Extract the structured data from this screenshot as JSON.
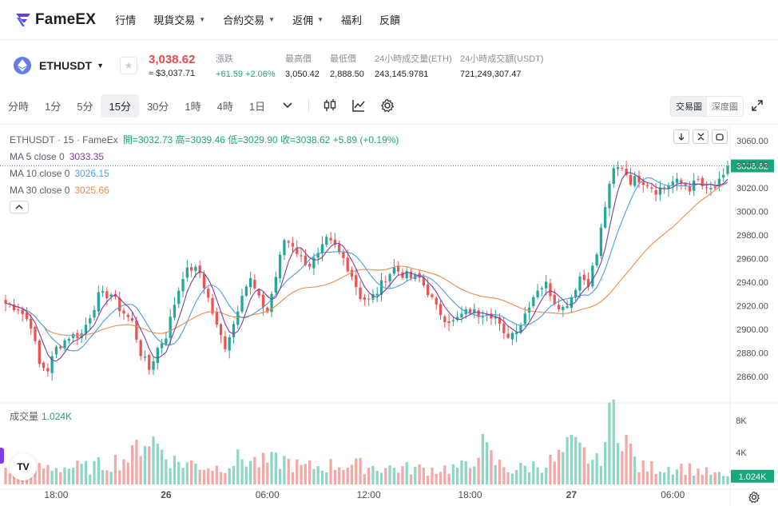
{
  "brand": {
    "name": "FameEX"
  },
  "nav": {
    "items": [
      {
        "label": "行情",
        "dropdown": false
      },
      {
        "label": "現貨交易",
        "dropdown": true
      },
      {
        "label": "合約交易",
        "dropdown": true
      },
      {
        "label": "返佣",
        "dropdown": true
      },
      {
        "label": "福利",
        "dropdown": false
      },
      {
        "label": "反饋",
        "dropdown": false
      }
    ]
  },
  "ticker": {
    "symbol": "ETHUSDT",
    "icon": "ethereum-icon",
    "price": "3,038.62",
    "price_usd": "≈ $3,037.71",
    "stats": [
      {
        "key": "漲跌",
        "value": "+61.59 +2.06%",
        "positive": true
      },
      {
        "key": "最高價",
        "value": "3,050.42",
        "positive": false
      },
      {
        "key": "最低價",
        "value": "2,888.50",
        "positive": false
      },
      {
        "key": "24小時成交量(ETH)",
        "value": "243,145.9781",
        "positive": false
      },
      {
        "key": "24小時成交額(USDT)",
        "value": "721,249,307.47",
        "positive": false
      }
    ]
  },
  "toolbar": {
    "timeframes": [
      "分時",
      "1分",
      "5分",
      "15分",
      "30分",
      "1時",
      "4時",
      "1日"
    ],
    "active_timeframe": "15分",
    "view_toggle": [
      "交易圖",
      "深度圖"
    ],
    "active_view": "交易圖"
  },
  "legend": {
    "title": "ETHUSDT · 15 · FameEx",
    "ohlc": "開=3032.73 高=3039.46 低=3029.90 收=3038.62 +5.89 (+0.19%)",
    "ma": [
      {
        "label": "MA 5 close 0",
        "value": "3033.35",
        "color": "#7b3fa1"
      },
      {
        "label": "MA 10 close 0",
        "value": "3026.15",
        "color": "#4a9fe0"
      },
      {
        "label": "MA 30 close 0",
        "value": "3025.66",
        "color": "#f08a4b"
      }
    ],
    "volume_label": "成交量",
    "volume_value": "1.024K"
  },
  "colors": {
    "up": "#26a69a",
    "down": "#ef5350",
    "ma5": "#7b3fa1",
    "ma10": "#4a9fe0",
    "ma30": "#f08a4b",
    "price_label": "#19a67c"
  },
  "chart_data": {
    "type": "candlestick",
    "price_axis": {
      "ticks": [
        3060,
        3040,
        3020,
        3000,
        2980,
        2960,
        2940,
        2920,
        2900,
        2880,
        2860
      ],
      "labels": [
        "3060.00",
        "3040.00",
        "3020.00",
        "3000.00",
        "2980.00",
        "2960.00",
        "2940.00",
        "2920.00",
        "2900.00",
        "2880.00",
        "2860.00"
      ],
      "last_price_label": "3038.62"
    },
    "volume_axis": {
      "ticks": [
        8000,
        4000
      ],
      "labels": [
        "8K",
        "4K"
      ],
      "last_volume_label": "1.024K"
    },
    "time_axis": {
      "labels": [
        "18:00",
        "26",
        "06:00",
        "12:00",
        "18:00",
        "27",
        "06:00"
      ],
      "label_bar_index": [
        12,
        38,
        62,
        86,
        110,
        134,
        158
      ],
      "bold": [
        false,
        true,
        false,
        false,
        false,
        true,
        false
      ]
    },
    "close_path_anchors": [
      [
        0,
        2922
      ],
      [
        3,
        2918
      ],
      [
        6,
        2904
      ],
      [
        8,
        2870
      ],
      [
        10,
        2866
      ],
      [
        12,
        2884
      ],
      [
        15,
        2894
      ],
      [
        18,
        2896
      ],
      [
        20,
        2912
      ],
      [
        22,
        2928
      ],
      [
        25,
        2930
      ],
      [
        27,
        2918
      ],
      [
        30,
        2906
      ],
      [
        32,
        2880
      ],
      [
        34,
        2866
      ],
      [
        36,
        2884
      ],
      [
        38,
        2895
      ],
      [
        40,
        2922
      ],
      [
        42,
        2946
      ],
      [
        44,
        2952
      ],
      [
        46,
        2948
      ],
      [
        48,
        2926
      ],
      [
        50,
        2902
      ],
      [
        52,
        2886
      ],
      [
        54,
        2905
      ],
      [
        56,
        2932
      ],
      [
        58,
        2942
      ],
      [
        60,
        2925
      ],
      [
        62,
        2915
      ],
      [
        64,
        2945
      ],
      [
        66,
        2976
      ],
      [
        68,
        2972
      ],
      [
        70,
        2960
      ],
      [
        72,
        2955
      ],
      [
        74,
        2962
      ],
      [
        76,
        2975
      ],
      [
        78,
        2970
      ],
      [
        80,
        2960
      ],
      [
        82,
        2946
      ],
      [
        84,
        2928
      ],
      [
        86,
        2924
      ],
      [
        88,
        2932
      ],
      [
        90,
        2944
      ],
      [
        92,
        2952
      ],
      [
        94,
        2947
      ],
      [
        96,
        2944
      ],
      [
        98,
        2943
      ],
      [
        100,
        2932
      ],
      [
        102,
        2918
      ],
      [
        104,
        2910
      ],
      [
        106,
        2906
      ],
      [
        108,
        2912
      ],
      [
        110,
        2916
      ],
      [
        112,
        2913
      ],
      [
        114,
        2916
      ],
      [
        116,
        2910
      ],
      [
        118,
        2894
      ],
      [
        120,
        2897
      ],
      [
        122,
        2905
      ],
      [
        124,
        2922
      ],
      [
        126,
        2935
      ],
      [
        128,
        2938
      ],
      [
        130,
        2924
      ],
      [
        132,
        2918
      ],
      [
        134,
        2928
      ],
      [
        136,
        2945
      ],
      [
        138,
        2940
      ],
      [
        140,
        2964
      ],
      [
        142,
        3005
      ],
      [
        144,
        3035
      ],
      [
        146,
        3038
      ],
      [
        148,
        3026
      ],
      [
        150,
        3028
      ],
      [
        152,
        3024
      ],
      [
        154,
        3018
      ],
      [
        156,
        3021
      ],
      [
        158,
        3025
      ],
      [
        160,
        3024
      ],
      [
        162,
        3020
      ],
      [
        164,
        3026
      ],
      [
        166,
        3017
      ],
      [
        168,
        3020
      ],
      [
        170,
        3028
      ],
      [
        171,
        3038.62
      ]
    ],
    "bars": 172,
    "volume_anchors": [
      [
        0,
        1600
      ],
      [
        10,
        2200
      ],
      [
        20,
        2100
      ],
      [
        30,
        3500
      ],
      [
        32,
        5600
      ],
      [
        34,
        5900
      ],
      [
        40,
        2900
      ],
      [
        50,
        2100
      ],
      [
        56,
        3300
      ],
      [
        60,
        2700
      ],
      [
        66,
        3000
      ],
      [
        70,
        2100
      ],
      [
        80,
        2500
      ],
      [
        90,
        2100
      ],
      [
        100,
        1900
      ],
      [
        110,
        2200
      ],
      [
        112,
        5200
      ],
      [
        116,
        2700
      ],
      [
        120,
        1800
      ],
      [
        130,
        2900
      ],
      [
        134,
        4700
      ],
      [
        136,
        4100
      ],
      [
        140,
        2700
      ],
      [
        142,
        5500
      ],
      [
        144,
        9300
      ],
      [
        146,
        7500
      ],
      [
        148,
        4100
      ],
      [
        150,
        2100
      ],
      [
        160,
        2200
      ],
      [
        170,
        1024
      ]
    ]
  }
}
